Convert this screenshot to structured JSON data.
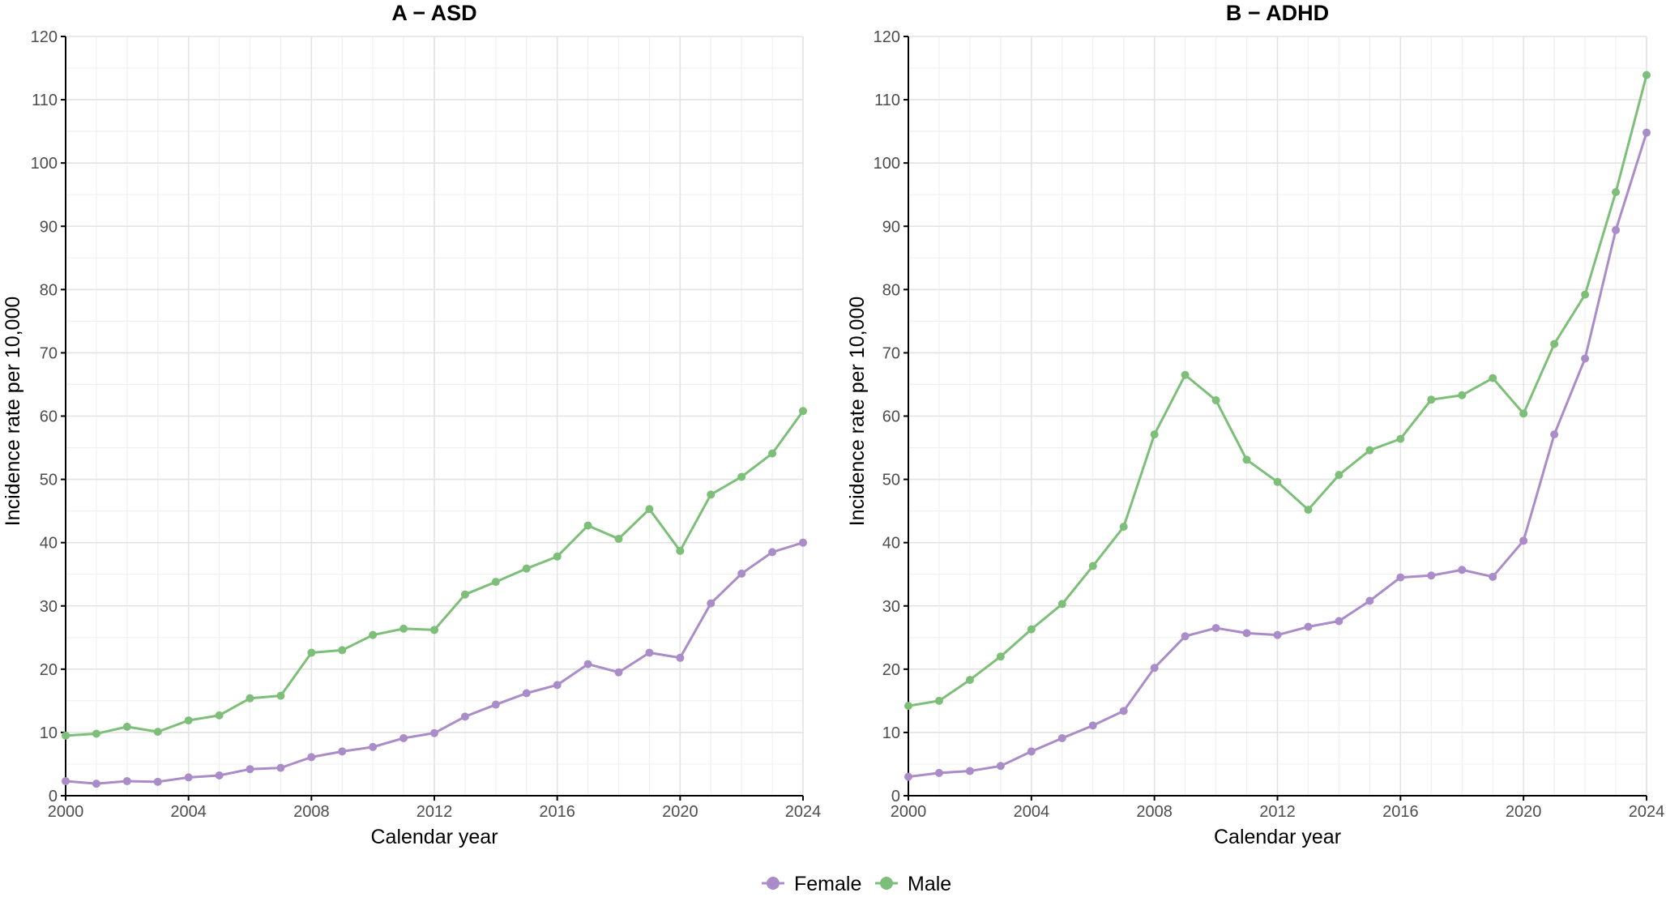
{
  "chart_data": [
    {
      "type": "line",
      "title": "A − ASD",
      "xlabel": "Calendar year",
      "ylabel": "Incidence rate per 10,000",
      "xlim": [
        2000,
        2024
      ],
      "ylim": [
        0,
        120
      ],
      "xticks": [
        2000,
        2004,
        2008,
        2012,
        2016,
        2020,
        2024
      ],
      "yticks": [
        0,
        10,
        20,
        30,
        40,
        50,
        60,
        70,
        80,
        90,
        100,
        110,
        120
      ],
      "grid": true,
      "x": [
        2000,
        2001,
        2002,
        2003,
        2004,
        2005,
        2006,
        2007,
        2008,
        2009,
        2010,
        2011,
        2012,
        2013,
        2014,
        2015,
        2016,
        2017,
        2018,
        2019,
        2020,
        2021,
        2022,
        2023,
        2024
      ],
      "series": [
        {
          "name": "Female",
          "color": "#a98cc8",
          "values": [
            2.3,
            1.9,
            2.3,
            2.2,
            2.9,
            3.2,
            4.2,
            4.4,
            6.1,
            7.0,
            7.7,
            9.1,
            9.9,
            12.5,
            14.4,
            16.2,
            17.5,
            20.8,
            19.5,
            22.6,
            21.8,
            30.4,
            35.1,
            38.5,
            40.0
          ]
        },
        {
          "name": "Male",
          "color": "#7dbf78",
          "values": [
            9.5,
            9.8,
            10.9,
            10.1,
            11.9,
            12.7,
            15.4,
            15.8,
            22.6,
            23.0,
            25.4,
            26.4,
            26.2,
            31.8,
            33.8,
            35.9,
            37.8,
            42.7,
            40.6,
            45.3,
            38.7,
            47.6,
            50.4,
            54.1,
            60.8
          ]
        }
      ]
    },
    {
      "type": "line",
      "title": "B − ADHD",
      "xlabel": "Calendar year",
      "ylabel": "Incidence rate per 10,000",
      "xlim": [
        2000,
        2024
      ],
      "ylim": [
        0,
        120
      ],
      "xticks": [
        2000,
        2004,
        2008,
        2012,
        2016,
        2020,
        2024
      ],
      "yticks": [
        0,
        10,
        20,
        30,
        40,
        50,
        60,
        70,
        80,
        90,
        100,
        110,
        120
      ],
      "grid": true,
      "x": [
        2000,
        2001,
        2002,
        2003,
        2004,
        2005,
        2006,
        2007,
        2008,
        2009,
        2010,
        2011,
        2012,
        2013,
        2014,
        2015,
        2016,
        2017,
        2018,
        2019,
        2020,
        2021,
        2022,
        2023,
        2024
      ],
      "series": [
        {
          "name": "Female",
          "color": "#a98cc8",
          "values": [
            3.0,
            3.6,
            3.9,
            4.7,
            7.0,
            9.1,
            11.1,
            13.4,
            20.2,
            25.2,
            26.5,
            25.7,
            25.4,
            26.7,
            27.6,
            30.8,
            34.5,
            34.8,
            35.7,
            34.6,
            40.3,
            57.1,
            69.1,
            89.4,
            104.8
          ]
        },
        {
          "name": "Male",
          "color": "#7dbf78",
          "values": [
            14.2,
            15.0,
            18.3,
            22.0,
            26.3,
            30.3,
            36.3,
            42.5,
            57.1,
            66.5,
            62.5,
            53.1,
            49.6,
            45.2,
            50.7,
            54.6,
            56.4,
            62.6,
            63.3,
            66.0,
            60.4,
            71.4,
            79.2,
            95.4,
            113.9
          ]
        }
      ]
    }
  ],
  "legend": {
    "placement": "bottom",
    "items": [
      {
        "label": "Female",
        "color": "#a98cc8"
      },
      {
        "label": "Male",
        "color": "#7dbf78"
      }
    ]
  }
}
